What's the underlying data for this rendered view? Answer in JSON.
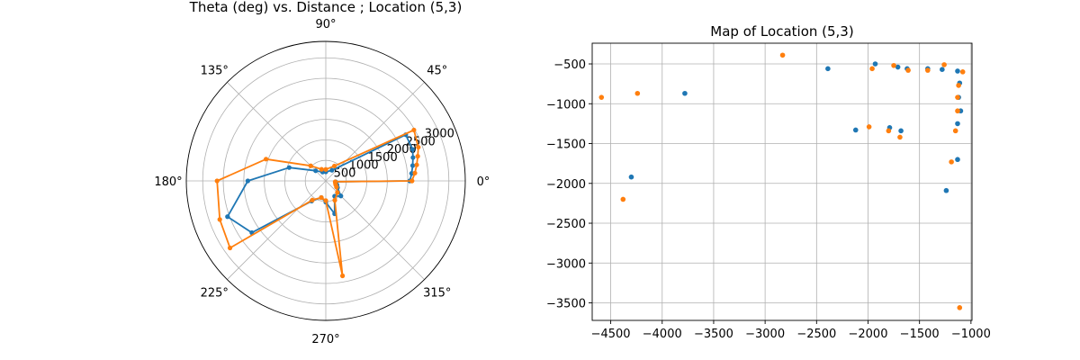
{
  "colors": {
    "series_1": "#1f77b4",
    "series_2": "#ff7f0e",
    "grid": "#b0b0b0",
    "axis": "#000000"
  },
  "chart_data": [
    {
      "type": "polar-line",
      "title": "Theta (deg) vs. Distance ; Location (5,3)",
      "angle_unit": "degrees",
      "angle_ticks": [
        0,
        45,
        90,
        135,
        180,
        225,
        270,
        315
      ],
      "angle_tick_labels": [
        "0°",
        "45°",
        "90°",
        "135°",
        "180°",
        "225°",
        "270°",
        "315°"
      ],
      "r_ticks": [
        500,
        1000,
        1500,
        2000,
        2500,
        3000
      ],
      "r_tick_labels": [
        "500",
        "1000",
        "1500",
        "2000",
        "2500",
        "3000"
      ],
      "r_range": [
        0,
        3400
      ],
      "r_label_angle_deg": 22.5,
      "grid": true,
      "series": [
        {
          "color": "#1f77b4",
          "theta": [
            0,
            5,
            10,
            15,
            20,
            30,
            60,
            90,
            110,
            135,
            160,
            180,
            200,
            215,
            235,
            255,
            270,
            285,
            300,
            315,
            330,
            340,
            350,
            355,
            0
          ],
          "r": [
            2050,
            2100,
            2150,
            2200,
            2250,
            2250,
            300,
            220,
            230,
            350,
            950,
            1900,
            2550,
            2200,
            600,
            420,
            520,
            830,
            430,
            520,
            330,
            290,
            255,
            240,
            2050
          ]
        },
        {
          "color": "#ff7f0e",
          "theta": [
            0,
            5,
            10,
            15,
            20,
            30,
            60,
            90,
            110,
            135,
            160,
            180,
            200,
            215,
            235,
            255,
            270,
            280,
            295,
            315,
            330,
            340,
            350,
            355,
            0
          ],
          "r": [
            2100,
            2180,
            2250,
            2320,
            2400,
            2480,
            420,
            280,
            300,
            520,
            1550,
            2650,
            2750,
            2850,
            570,
            420,
            480,
            2350,
            520,
            400,
            300,
            255,
            235,
            230,
            2100
          ]
        }
      ]
    },
    {
      "type": "scatter",
      "title": "Map of Location (5,3)",
      "x_ticks": [
        -4500,
        -4000,
        -3500,
        -3000,
        -2500,
        -2000,
        -1500,
        -1000
      ],
      "x_tick_labels": [
        "−4500",
        "−4000",
        "−3500",
        "−3000",
        "−2500",
        "−2000",
        "−1500",
        "−1000"
      ],
      "y_ticks": [
        -500,
        -1000,
        -1500,
        -2000,
        -2500,
        -3000,
        -3500
      ],
      "y_tick_labels": [
        "−500",
        "−1000",
        "−1500",
        "−2000",
        "−2500",
        "−3000",
        "−3500"
      ],
      "xlim": [
        -4680,
        -990
      ],
      "ylim": [
        -3720,
        -240
      ],
      "grid": true,
      "series": [
        {
          "color": "#1f77b4",
          "points": [
            [
              -4300,
              -1920
            ],
            [
              -3780,
              -870
            ],
            [
              -2390,
              -560
            ],
            [
              -2120,
              -1330
            ],
            [
              -1930,
              -500
            ],
            [
              -1790,
              -1300
            ],
            [
              -1710,
              -540
            ],
            [
              -1680,
              -1340
            ],
            [
              -1620,
              -560
            ],
            [
              -1420,
              -560
            ],
            [
              -1280,
              -570
            ],
            [
              -1240,
              -2090
            ],
            [
              -1130,
              -590
            ],
            [
              -1130,
              -1250
            ],
            [
              -1130,
              -1700
            ],
            [
              -1120,
              -920
            ],
            [
              -1110,
              -740
            ],
            [
              -1100,
              -1090
            ]
          ]
        },
        {
          "color": "#ff7f0e",
          "points": [
            [
              -4590,
              -920
            ],
            [
              -4380,
              -2200
            ],
            [
              -4240,
              -870
            ],
            [
              -2830,
              -390
            ],
            [
              -1990,
              -1290
            ],
            [
              -1960,
              -560
            ],
            [
              -1800,
              -1340
            ],
            [
              -1750,
              -520
            ],
            [
              -1690,
              -1420
            ],
            [
              -1610,
              -580
            ],
            [
              -1420,
              -580
            ],
            [
              -1260,
              -510
            ],
            [
              -1190,
              -1730
            ],
            [
              -1150,
              -1340
            ],
            [
              -1130,
              -920
            ],
            [
              -1120,
              -770
            ],
            [
              -1130,
              -1090
            ],
            [
              -1110,
              -3560
            ],
            [
              -1080,
              -600
            ]
          ]
        }
      ]
    }
  ]
}
